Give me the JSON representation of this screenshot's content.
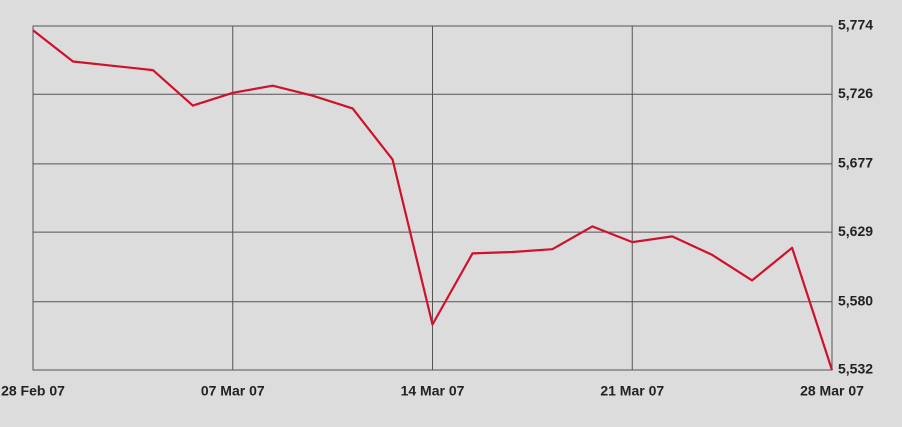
{
  "chart_data": {
    "type": "line",
    "categories": [
      "28 Feb 07",
      null,
      null,
      null,
      null,
      "07 Mar 07",
      null,
      null,
      null,
      null,
      "14 Mar 07",
      null,
      null,
      null,
      null,
      "21 Mar 07",
      null,
      null,
      null,
      null,
      "28 Mar 07"
    ],
    "values": [
      5771,
      5749,
      5746,
      5743,
      5718,
      5727,
      5732,
      5725,
      5716,
      5680,
      5564,
      5614,
      5615,
      5617,
      5633,
      5622,
      5626,
      5613,
      5595,
      5618,
      5532
    ],
    "color": "#d0112b",
    "ylim": [
      5532,
      5774
    ],
    "yticks": [
      {
        "value": 5532,
        "label": "5,532"
      },
      {
        "value": 5580,
        "label": "5,580"
      },
      {
        "value": 5629,
        "label": "5,629"
      },
      {
        "value": 5677,
        "label": "5,677"
      },
      {
        "value": 5726,
        "label": "5,726"
      },
      {
        "value": 5774,
        "label": "5,774"
      }
    ],
    "grid": true
  }
}
